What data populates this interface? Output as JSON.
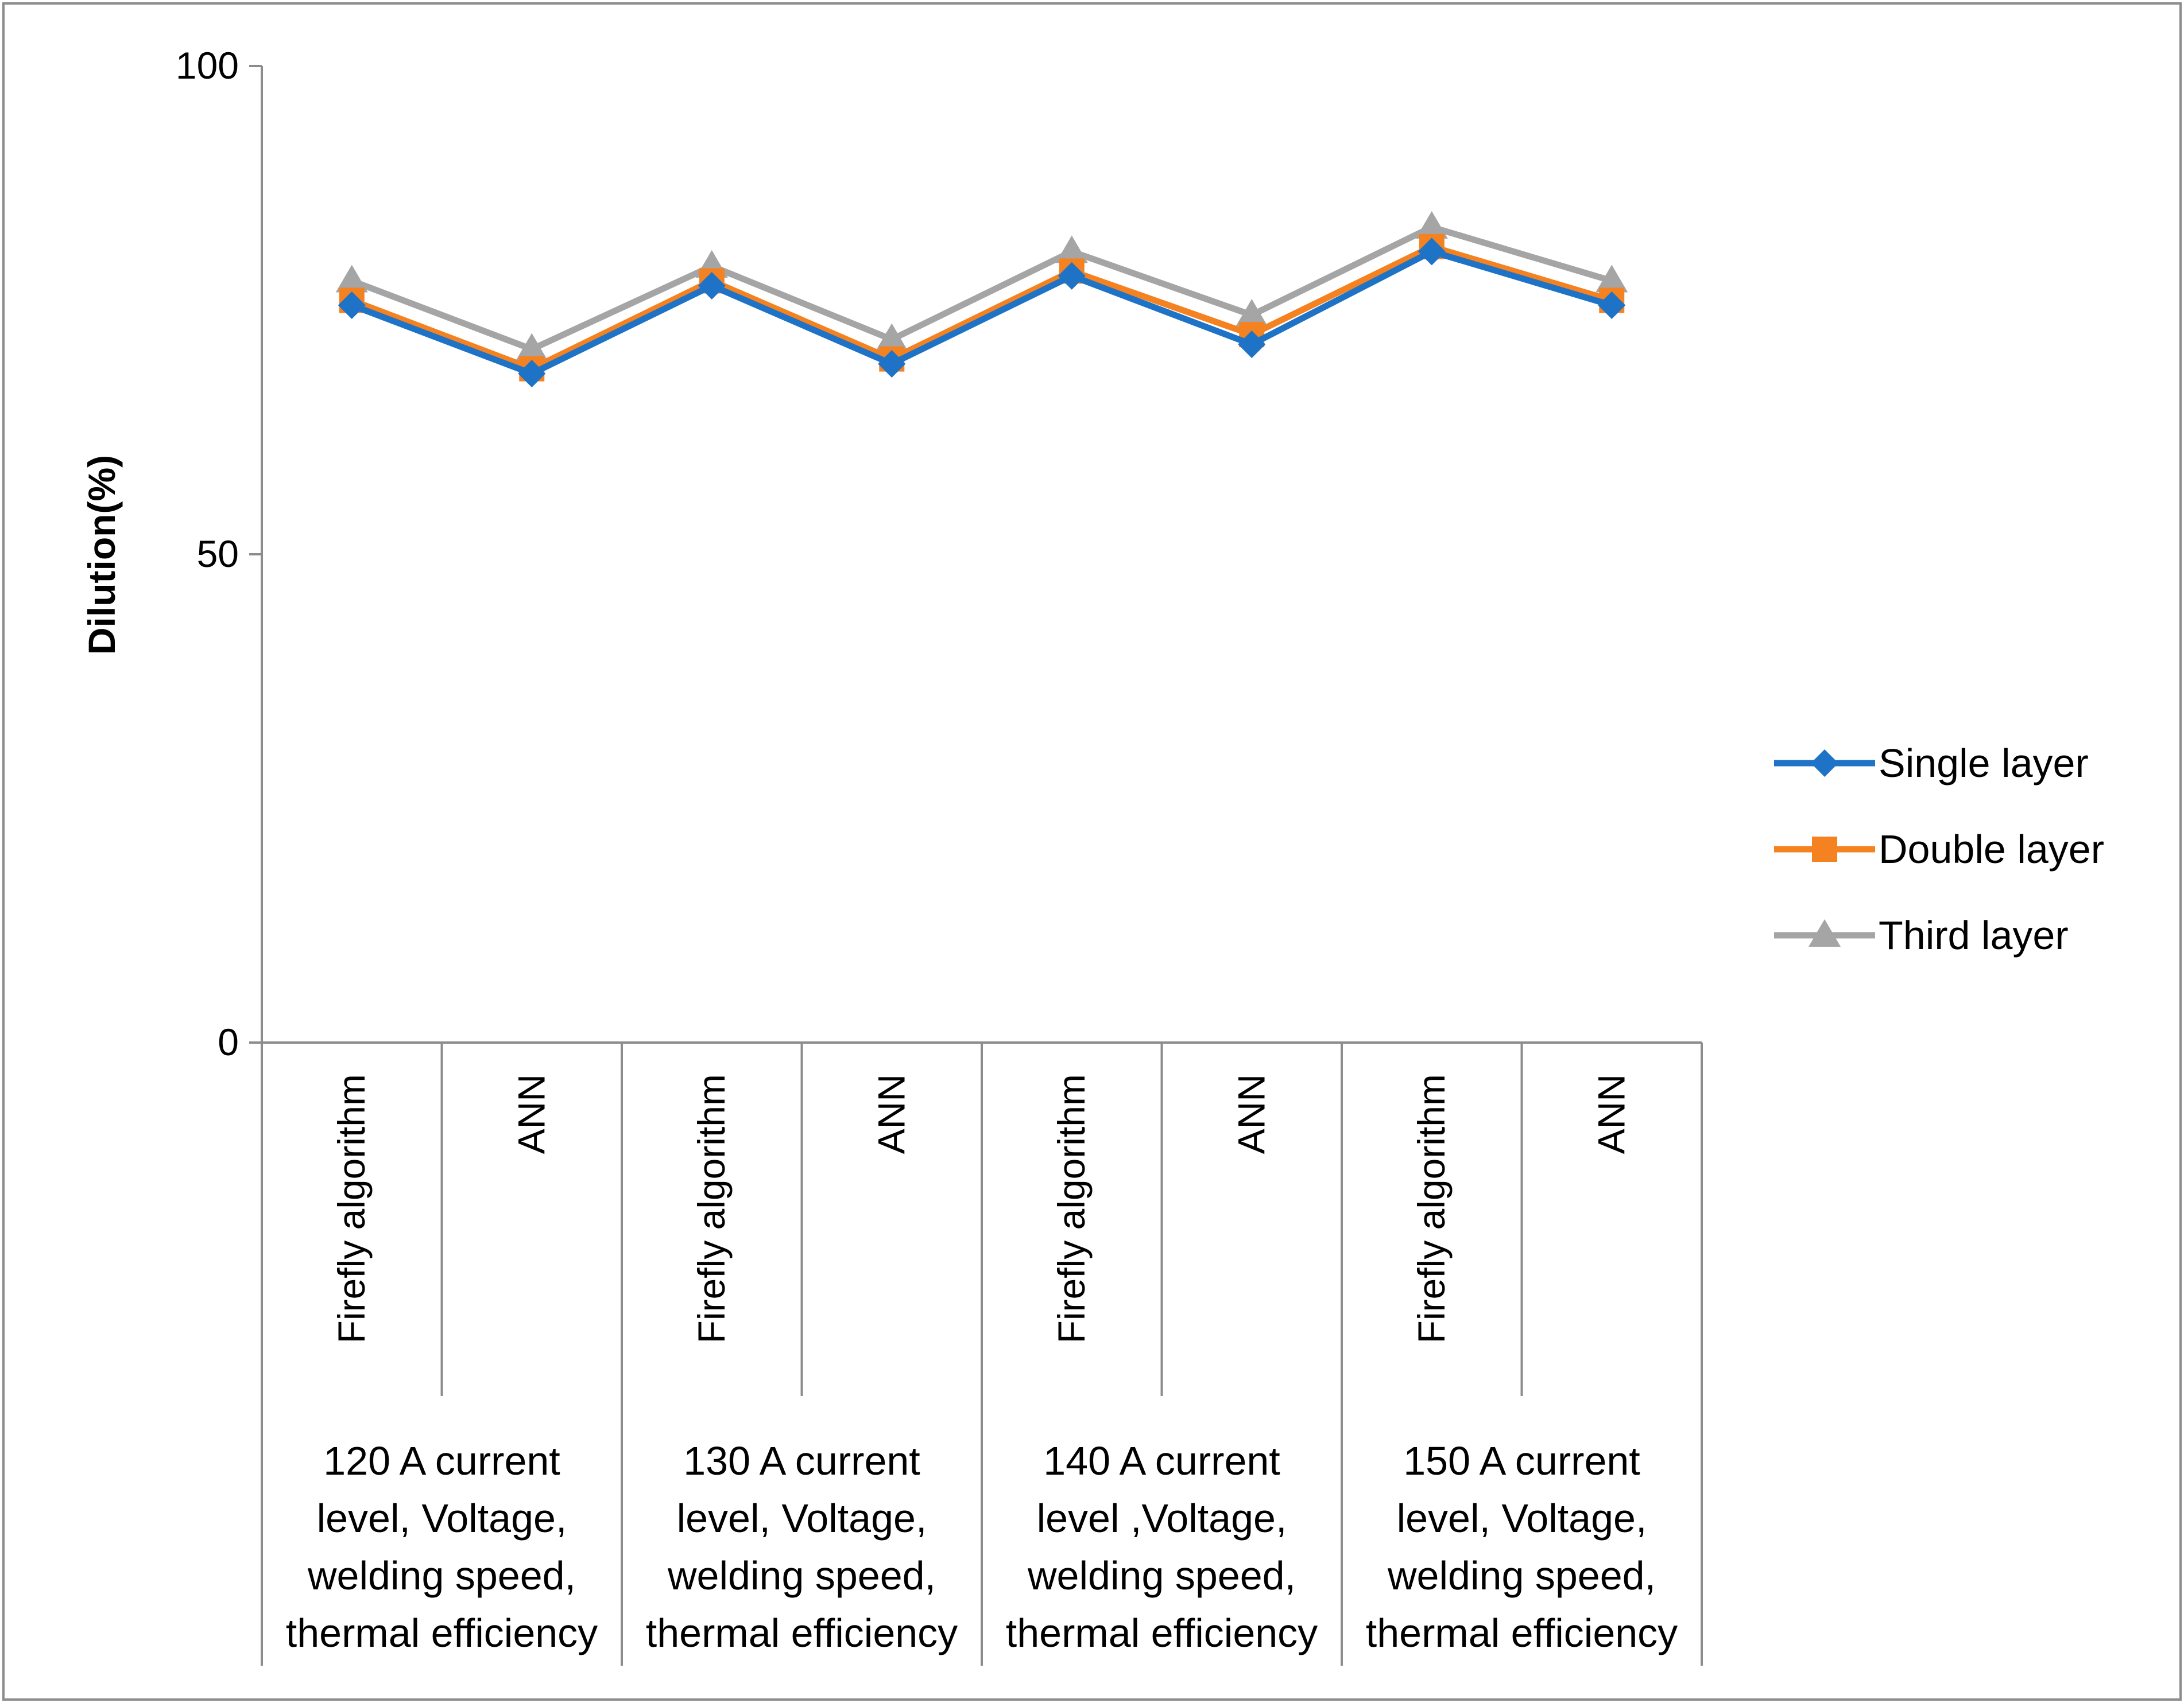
{
  "chart_data": {
    "type": "line",
    "title": "",
    "ylabel": "Dilution(%)",
    "xlabel": "",
    "ylim": [
      0,
      100
    ],
    "yticks": [
      0,
      50,
      100
    ],
    "grid": false,
    "legend_position": "right",
    "categories": [
      "Firefly algorithm",
      "ANN",
      "Firefly algorithm",
      "ANN",
      "Firefly algorithm",
      "ANN",
      "Firefly algorithm",
      "ANN"
    ],
    "groups": [
      {
        "label": [
          "120 A current",
          "level, Voltage,",
          "welding speed,",
          "thermal efficiency"
        ]
      },
      {
        "label": [
          "130 A current",
          "level, Voltage,",
          "welding speed,",
          "thermal efficiency"
        ]
      },
      {
        "label": [
          "140 A current",
          "level ,Voltage,",
          "welding speed,",
          "thermal efficiency"
        ]
      },
      {
        "label": [
          "150 A current",
          "level, Voltage,",
          "welding speed,",
          "thermal efficiency"
        ]
      }
    ],
    "series": [
      {
        "name": "Single layer",
        "color": "#1f73c6",
        "marker": "diamond",
        "values": [
          75.5,
          68.5,
          77.5,
          69.5,
          78.5,
          71.5,
          81,
          75.5
        ]
      },
      {
        "name": "Double layer",
        "color": "#f58220",
        "marker": "square",
        "values": [
          76,
          69,
          78,
          70,
          79,
          72.5,
          81.5,
          76
        ]
      },
      {
        "name": "Third layer",
        "color": "#a5a5a5",
        "marker": "triangle",
        "values": [
          78,
          71,
          79.5,
          72,
          81,
          74.5,
          83.5,
          78
        ]
      }
    ]
  }
}
